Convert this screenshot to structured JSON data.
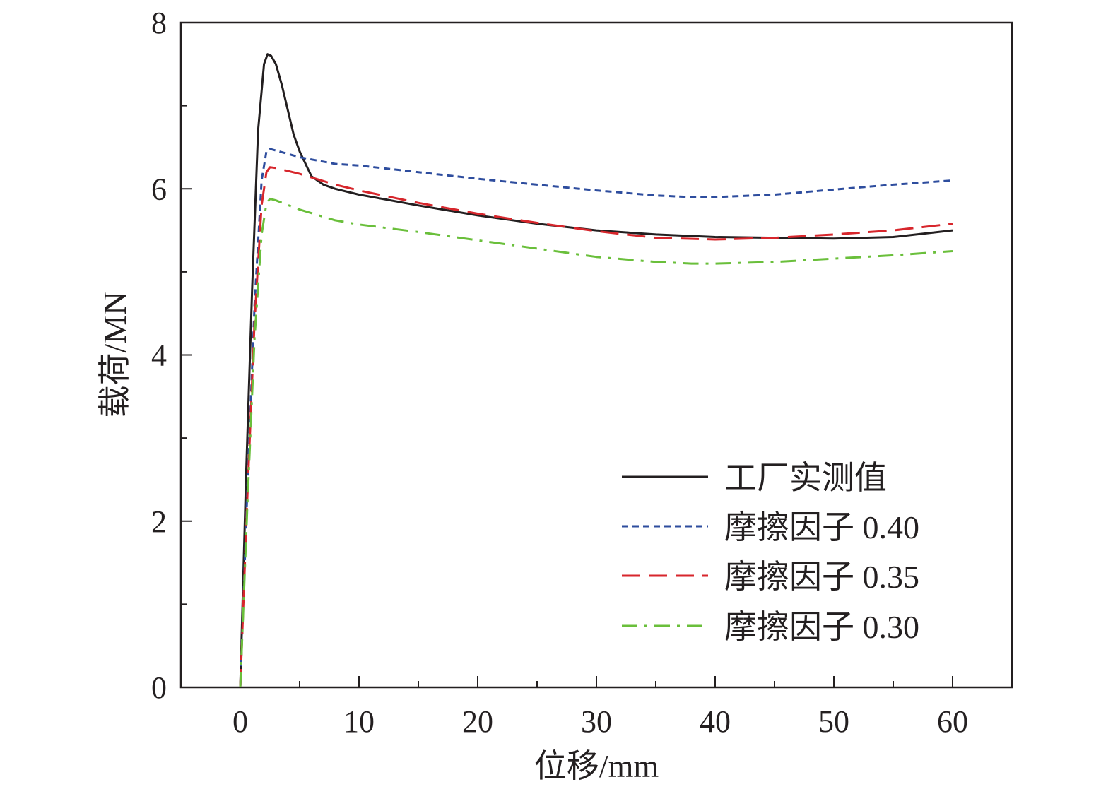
{
  "chart_data": {
    "type": "line",
    "xlabel": "位移/mm",
    "ylabel": "载荷/MN",
    "xlim": [
      -5,
      65
    ],
    "ylim": [
      0,
      8
    ],
    "x_ticks": [
      "0",
      "10",
      "20",
      "30",
      "40",
      "50",
      "60"
    ],
    "y_ticks": [
      "0",
      "2",
      "4",
      "6",
      "8"
    ],
    "grid": false,
    "legend_position": "bottom-right",
    "series": [
      {
        "name": "工厂实测值",
        "color": "#231f20",
        "dash": "solid",
        "x": [
          0,
          0.5,
          1.0,
          1.5,
          2.0,
          2.3,
          2.6,
          3.0,
          3.5,
          4.0,
          4.5,
          5.0,
          5.5,
          6.0,
          7.0,
          8.0,
          10,
          15,
          20,
          25,
          30,
          35,
          40,
          45,
          50,
          55,
          60
        ],
        "y": [
          0,
          2.6,
          4.8,
          6.7,
          7.5,
          7.62,
          7.6,
          7.5,
          7.25,
          6.95,
          6.65,
          6.45,
          6.3,
          6.15,
          6.05,
          6.0,
          5.93,
          5.8,
          5.68,
          5.58,
          5.5,
          5.45,
          5.42,
          5.41,
          5.4,
          5.42,
          5.5
        ]
      },
      {
        "name": "摩擦因子 0.40",
        "color": "#2e4d9e",
        "dash": "short-dash",
        "x": [
          0,
          0.6,
          1.2,
          1.8,
          2.2,
          2.5,
          3,
          5,
          8,
          10,
          15,
          20,
          25,
          30,
          35,
          38,
          40,
          45,
          50,
          55,
          60
        ],
        "y": [
          0,
          2.4,
          4.6,
          6.1,
          6.45,
          6.48,
          6.46,
          6.38,
          6.3,
          6.28,
          6.2,
          6.12,
          6.05,
          5.98,
          5.92,
          5.9,
          5.9,
          5.93,
          5.99,
          6.05,
          6.1
        ]
      },
      {
        "name": "摩擦因子 0.35",
        "color": "#d7262c",
        "dash": "long-dash",
        "x": [
          0,
          0.6,
          1.2,
          1.8,
          2.2,
          2.5,
          3,
          5,
          8,
          10,
          15,
          20,
          25,
          30,
          35,
          40,
          45,
          50,
          55,
          60
        ],
        "y": [
          0,
          2.3,
          4.4,
          5.8,
          6.2,
          6.26,
          6.25,
          6.18,
          6.05,
          5.98,
          5.83,
          5.7,
          5.59,
          5.49,
          5.41,
          5.39,
          5.41,
          5.45,
          5.5,
          5.58
        ]
      },
      {
        "name": "摩擦因子 0.30",
        "color": "#6abf3b",
        "dash": "dash-dot",
        "x": [
          0,
          0.6,
          1.2,
          1.8,
          2.2,
          2.5,
          3,
          5,
          8,
          10,
          15,
          20,
          25,
          30,
          35,
          38,
          40,
          45,
          50,
          55,
          60
        ],
        "y": [
          0,
          2.2,
          4.2,
          5.45,
          5.82,
          5.88,
          5.86,
          5.75,
          5.62,
          5.57,
          5.48,
          5.38,
          5.28,
          5.18,
          5.12,
          5.1,
          5.1,
          5.12,
          5.16,
          5.2,
          5.25
        ]
      }
    ]
  }
}
